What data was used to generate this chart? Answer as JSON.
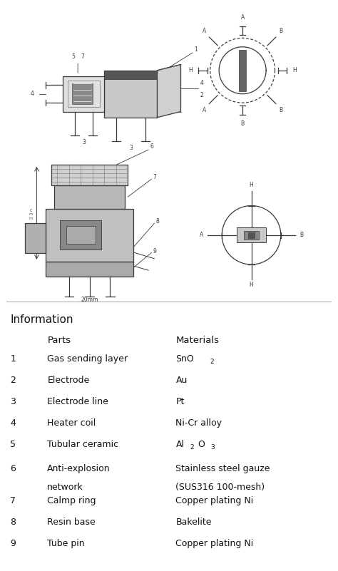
{
  "title": "Information",
  "header": [
    "Parts",
    "Materials"
  ],
  "rows": [
    {
      "num": "1",
      "part": "Gas sending layer",
      "mat1": "SnO",
      "mat_sub": "2",
      "mat2": ""
    },
    {
      "num": "2",
      "part": "Electrode",
      "mat1": "Au",
      "mat_sub": "",
      "mat2": ""
    },
    {
      "num": "3",
      "part": "Electrode line",
      "mat1": "Pt",
      "mat_sub": "",
      "mat2": ""
    },
    {
      "num": "4",
      "part": "Heater coil",
      "mat1": "Ni-Cr alloy",
      "mat_sub": "",
      "mat2": ""
    },
    {
      "num": "5",
      "part": "Tubular ceramic",
      "mat1": "Al",
      "mat_sub": "2",
      "mat2": "O",
      "mat_sub2": "3"
    },
    {
      "num": "6",
      "part": "Anti-explosion",
      "part2": "network",
      "mat1": "Stainless steel gauze",
      "mat2": "(SUS316 100-mesh)",
      "mat_sub": "",
      "mat_sub2": ""
    },
    {
      "num": "7",
      "part": "Calmp ring",
      "mat1": "Copper plating Ni",
      "mat_sub": "",
      "mat2": ""
    },
    {
      "num": "8",
      "part": "Resin base",
      "mat1": "Bakelite",
      "mat_sub": "",
      "mat2": ""
    },
    {
      "num": "9",
      "part": "Tube pin",
      "mat1": "Copper plating Ni",
      "mat_sub": "",
      "mat2": ""
    }
  ],
  "bg_color": "#ffffff",
  "text_color": "#111111",
  "fig_width": 4.74,
  "fig_height": 8.01,
  "dpi": 100
}
